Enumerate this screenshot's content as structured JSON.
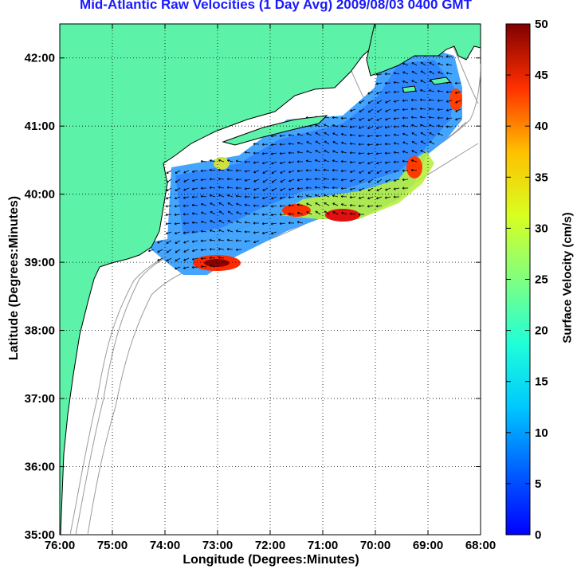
{
  "title": "Mid-Atlantic Raw Velocities (1 Day Avg) 2009/08/03 0400 GMT",
  "xlabel": "Longitude (Degrees:Minutes)",
  "ylabel": "Latitude (Degrees:Minutes)",
  "colorbar": {
    "label": "Surface Velocity (cm/s)",
    "ticks": [
      "0",
      "5",
      "10",
      "15",
      "20",
      "25",
      "30",
      "35",
      "40",
      "45",
      "50"
    ],
    "range": [
      0,
      50
    ],
    "colormap": "jet"
  },
  "map": {
    "lon_ticks": [
      "76:00",
      "75:00",
      "74:00",
      "73:00",
      "72:00",
      "71:00",
      "70:00",
      "69:00",
      "68:00"
    ],
    "lat_ticks": [
      "35:00",
      "36:00",
      "37:00",
      "38:00",
      "39:00",
      "40:00",
      "41:00",
      "42:00"
    ],
    "lon_range": [
      -76,
      -68
    ],
    "lat_range": [
      35,
      42.5
    ],
    "grid": "dotted",
    "land_color": "#5cf2a8",
    "bathymetry_color": "#9a9a9a"
  }
}
